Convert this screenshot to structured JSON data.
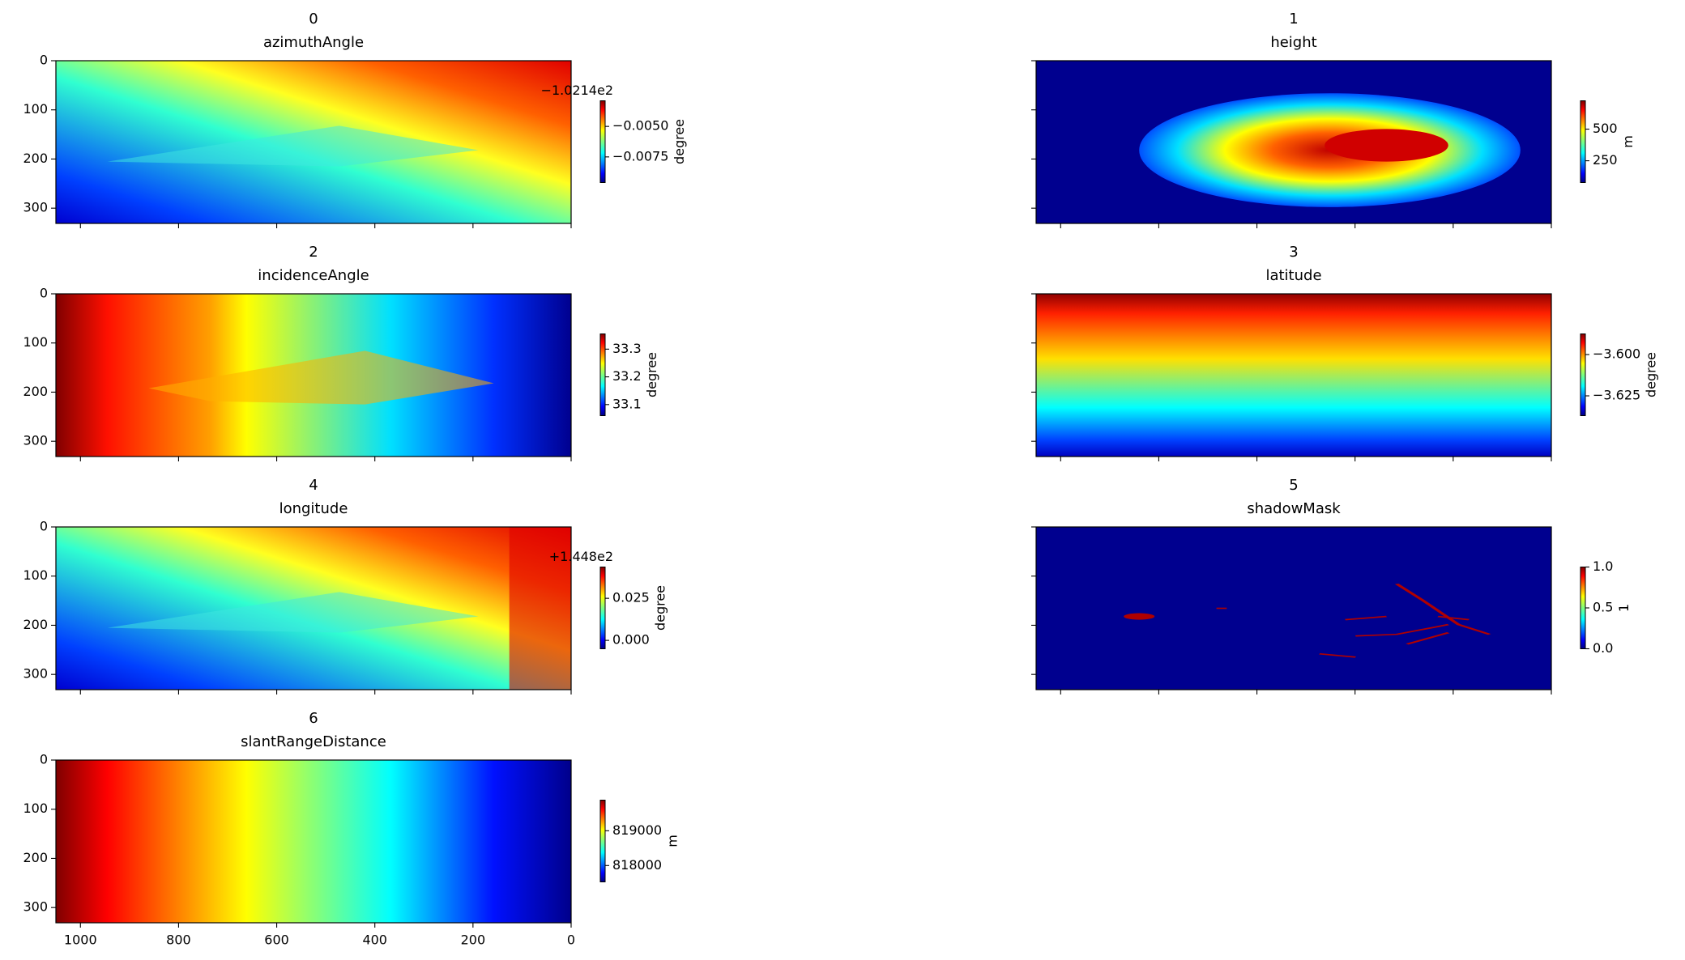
{
  "chart_data": [
    {
      "type": "image",
      "title": "0",
      "subtitle": "azimuthAngle",
      "xlim": [
        1050,
        0
      ],
      "ylim": [
        331,
        0
      ],
      "xticks": [
        1000,
        800,
        600,
        400,
        200,
        0
      ],
      "yticks": [
        0,
        100,
        200,
        300
      ],
      "xticklabels": false,
      "yticklabels": true,
      "colorbar": {
        "label": "degree",
        "clim": [
          -0.0096,
          -0.0029
        ],
        "ticks": [
          {
            "value": -0.005,
            "label": "−0.0050"
          },
          {
            "value": -0.0075,
            "label": "−0.0075"
          }
        ],
        "offset": "−1.0214e2"
      }
    },
    {
      "type": "image",
      "title": "1",
      "subtitle": "height",
      "xlim": [
        1050,
        0
      ],
      "ylim": [
        331,
        0
      ],
      "xticks": [
        1000,
        800,
        600,
        400,
        200,
        0
      ],
      "yticks": [
        0,
        100,
        200,
        300
      ],
      "xticklabels": false,
      "yticklabels": false,
      "colorbar": {
        "label": "m",
        "clim": [
          78,
          724
        ],
        "ticks": [
          500,
          250
        ]
      }
    },
    {
      "type": "image",
      "title": "2",
      "subtitle": "incidenceAngle",
      "xlim": [
        1050,
        0
      ],
      "ylim": [
        331,
        0
      ],
      "xticks": [
        1000,
        800,
        600,
        400,
        200,
        0
      ],
      "yticks": [
        0,
        100,
        200,
        300
      ],
      "xticklabels": false,
      "yticklabels": true,
      "colorbar": {
        "label": "degree",
        "clim": [
          33.06,
          33.355
        ],
        "ticks": [
          33.3,
          33.2,
          33.1
        ]
      }
    },
    {
      "type": "image",
      "title": "3",
      "subtitle": "latitude",
      "xlim": [
        1050,
        0
      ],
      "ylim": [
        331,
        0
      ],
      "xticks": [
        1000,
        800,
        600,
        400,
        200,
        0
      ],
      "yticks": [
        0,
        100,
        200,
        300
      ],
      "xticklabels": false,
      "yticklabels": false,
      "colorbar": {
        "label": "degree",
        "clim": [
          -3.637,
          -3.5875
        ],
        "ticks": [
          {
            "value": -3.6,
            "label": "−3.600"
          },
          {
            "value": -3.625,
            "label": "−3.625"
          }
        ]
      }
    },
    {
      "type": "image",
      "title": "4",
      "subtitle": "longitude",
      "xlim": [
        1050,
        0
      ],
      "ylim": [
        331,
        0
      ],
      "xticks": [
        1000,
        800,
        600,
        400,
        200,
        0
      ],
      "yticks": [
        0,
        100,
        200,
        300
      ],
      "xticklabels": false,
      "yticklabels": true,
      "colorbar": {
        "label": "degree",
        "clim": [
          -0.005,
          0.0436
        ],
        "ticks": [
          0.025,
          {
            "value": 0,
            "label": "0.000"
          }
        ],
        "offset": "+1.448e2"
      }
    },
    {
      "type": "image",
      "title": "5",
      "subtitle": "shadowMask",
      "xlim": [
        1050,
        0
      ],
      "ylim": [
        331,
        0
      ],
      "xticks": [
        1000,
        800,
        600,
        400,
        200,
        0
      ],
      "yticks": [
        0,
        100,
        200,
        300
      ],
      "xticklabels": false,
      "yticklabels": false,
      "colorbar": {
        "label": "1",
        "clim": [
          0,
          1
        ],
        "ticks": [
          {
            "value": 1,
            "label": "1.0"
          },
          0.5,
          {
            "value": 0,
            "label": "0.0"
          }
        ]
      }
    },
    {
      "type": "image",
      "title": "6",
      "subtitle": "slantRangeDistance",
      "xlim": [
        1050,
        0
      ],
      "ylim": [
        331,
        0
      ],
      "xticks": [
        1000,
        800,
        600,
        400,
        200,
        0
      ],
      "yticks": [
        0,
        100,
        200,
        300
      ],
      "xticklabels": true,
      "yticklabels": true,
      "colorbar": {
        "label": "m",
        "clim": [
          817530,
          819880
        ],
        "ticks": [
          819000,
          818000
        ]
      }
    }
  ]
}
